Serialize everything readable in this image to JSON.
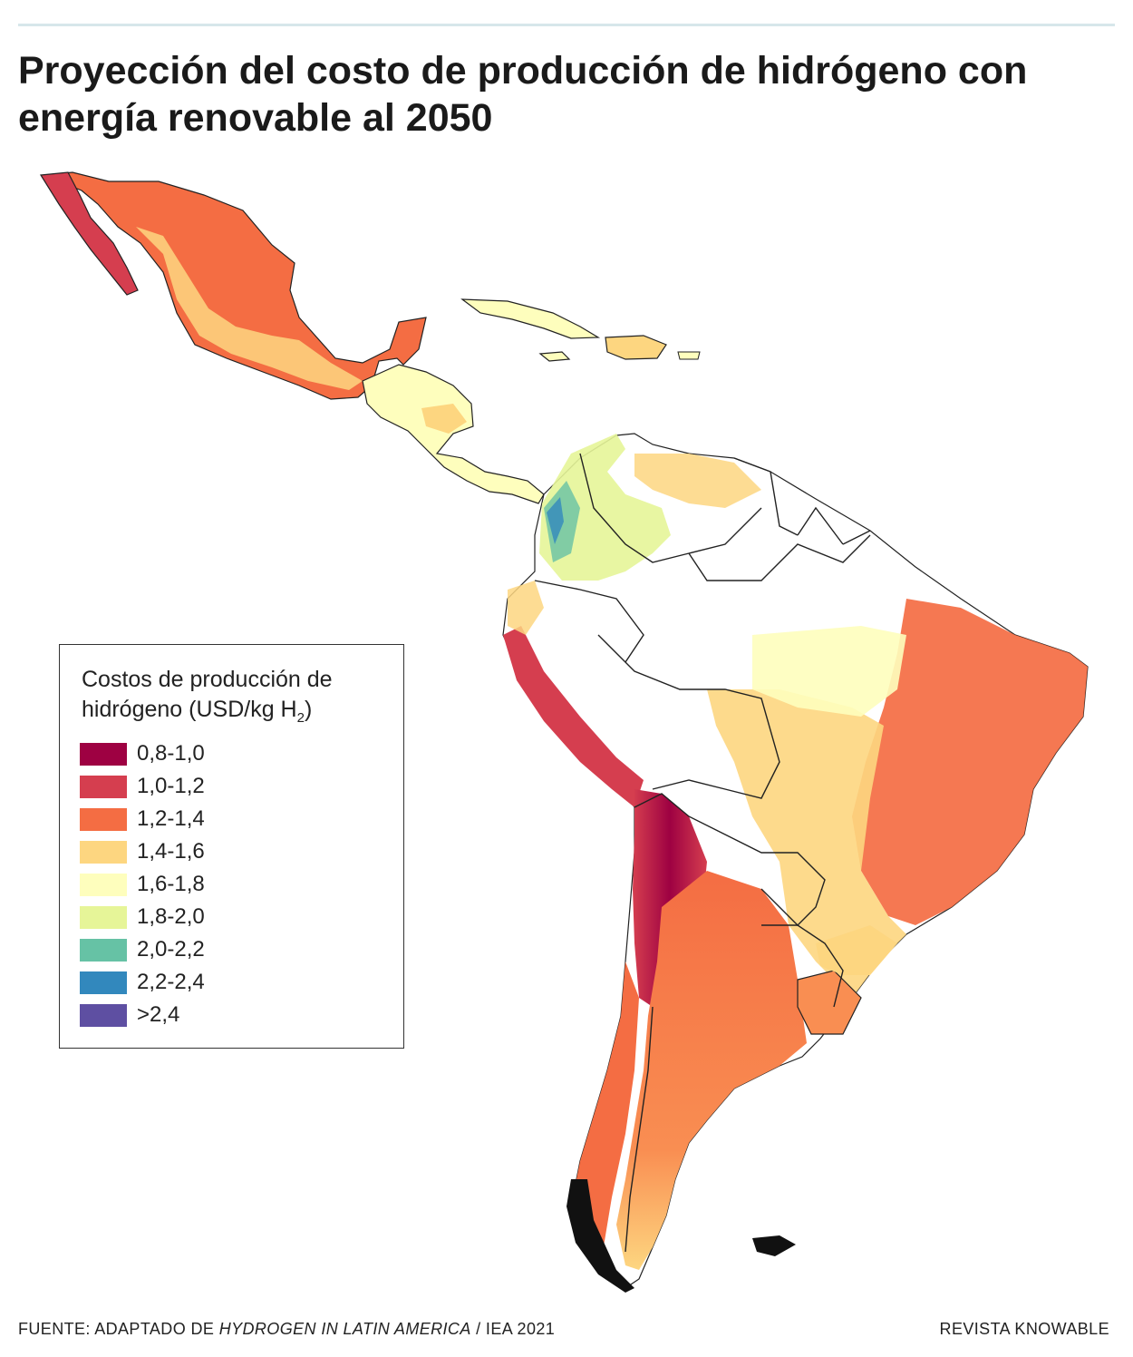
{
  "title": "Proyección del costo de producción de hidrógeno con energía renovable al 2050",
  "legend": {
    "title_main": "Costos de producción de hidrógeno (USD/kg H",
    "title_sub": "2",
    "title_end": ")",
    "items": [
      {
        "label": "0,8-1,0",
        "color": "#9e0142"
      },
      {
        "label": "1,0-1,2",
        "color": "#d53e4f"
      },
      {
        "label": "1,2-1,4",
        "color": "#f46d43"
      },
      {
        "label": "1,4-1,6",
        "color": "#fdd680"
      },
      {
        "label": "1,6-1,8",
        "color": "#fefebd"
      },
      {
        "label": "1,8-2,0",
        "color": "#e6f598"
      },
      {
        "label": "2,0-2,2",
        "color": "#66c2a5"
      },
      {
        "label": "2,2-2,4",
        "color": "#3288bd"
      },
      {
        "label": ">2,4",
        "color": "#5e4fa2"
      }
    ]
  },
  "footer": {
    "source_prefix": "FUENTE: ADAPTADO DE ",
    "source_italic": "HYDROGEN IN LATIN AMERICA",
    "source_suffix": " / IEA 2021",
    "credit": "REVISTA KNOWABLE"
  }
}
